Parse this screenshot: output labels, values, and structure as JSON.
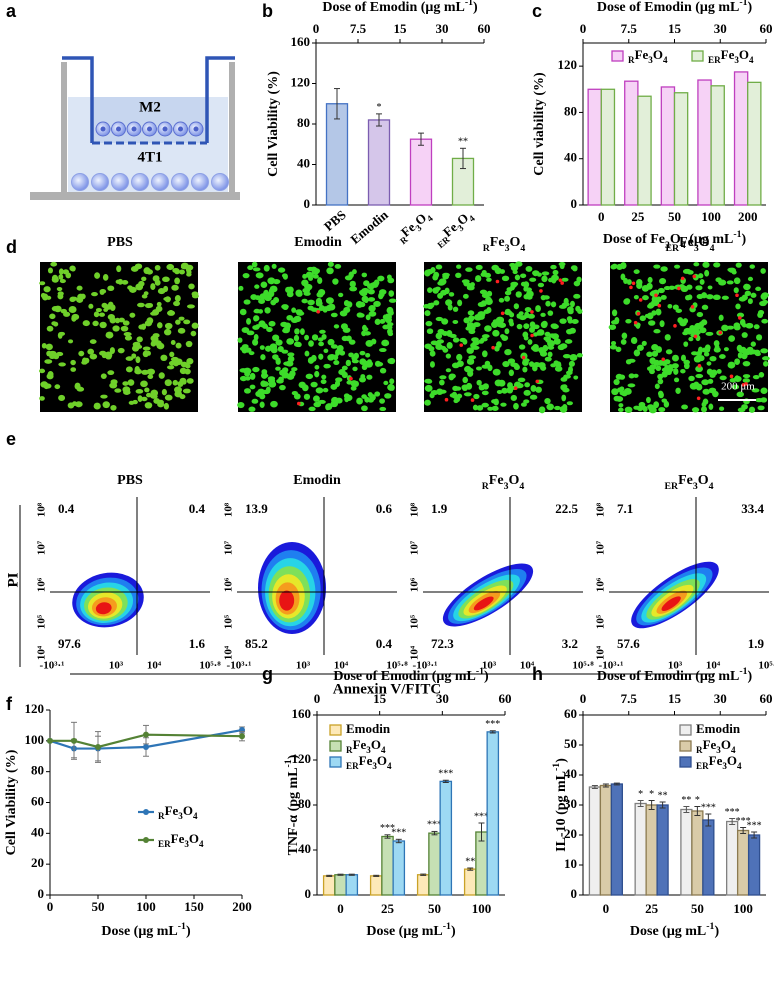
{
  "panel_labels": [
    "a",
    "b",
    "c",
    "d",
    "e",
    "f",
    "g",
    "h"
  ],
  "schematic": {
    "labels": [
      "M2",
      "4T1"
    ]
  },
  "images": {
    "titles": [
      "PBS",
      "Emodin",
      "RFe3O4",
      "ERFe3O4"
    ],
    "scale_bar": "200 μm"
  },
  "flow": {
    "titles": [
      "PBS",
      "Emodin",
      "RFe3O4",
      "ERFe3O4"
    ],
    "quadrants": [
      [
        0.4,
        0.4,
        97.6,
        1.6
      ],
      [
        13.9,
        0.6,
        85.2,
        0.4
      ],
      [
        1.9,
        22.5,
        72.3,
        3.2
      ],
      [
        7.1,
        33.4,
        57.6,
        1.9
      ]
    ],
    "y_ticks": [
      "10⁸",
      "10⁷",
      "10⁶",
      "10⁵",
      "10⁴"
    ],
    "x_ticks": [
      "-10³·¹",
      "10³",
      "10⁴",
      "10⁵·⁸"
    ],
    "y_label": "PI",
    "x_label": "Annexin V/FITC"
  },
  "chart_data": [
    {
      "type": "bar",
      "top_axis": {
        "title": "Dose of Emodin (μg mL-1)",
        "ticks": [
          0,
          7.5,
          15,
          30,
          60
        ]
      },
      "categories": [
        "PBS",
        "Emodin",
        "RFe3O4",
        "ERFe3O4"
      ],
      "values": [
        100,
        84,
        65,
        46
      ],
      "errors": [
        15,
        6,
        6,
        10
      ],
      "annotations": [
        null,
        "*",
        null,
        "**"
      ],
      "colors": [
        "#b4c7e7",
        "#d5c6ea",
        "#f6d2f6",
        "#e2efd9"
      ],
      "edge_colors": [
        "#4472c4",
        "#7b5db0",
        "#bf3fbf",
        "#70ad47"
      ],
      "y_label": "Cell Viability (%)",
      "ylim": [
        0,
        160
      ],
      "yticks": [
        0,
        40,
        80,
        120,
        160
      ]
    },
    {
      "type": "bar",
      "top_axis": {
        "title": "Dose of Emodin (μg mL-1)",
        "ticks": [
          0,
          7.5,
          15,
          30,
          60
        ]
      },
      "categories": [
        "0",
        "25",
        "50",
        "100",
        "200"
      ],
      "series": [
        {
          "name": "RFe3O4",
          "color": "#f6d2f6",
          "edge_color": "#bf3fbf",
          "values": [
            100,
            107,
            102,
            108,
            115
          ]
        },
        {
          "name": "ERFe3O4",
          "color": "#e2efd9",
          "edge_color": "#70ad47",
          "values": [
            100,
            94,
            97,
            103,
            106
          ]
        }
      ],
      "x_label": "Dose of Fe3O4 (μg mL-1)",
      "y_label": "Cell viability (%)",
      "ylim": [
        0,
        140
      ],
      "yticks": [
        0,
        40,
        80,
        120
      ],
      "legend": "top"
    },
    {
      "type": "line",
      "x": [
        0,
        25,
        50,
        100,
        200
      ],
      "series": [
        {
          "name": "RFe3O4",
          "color": "#2e75b6",
          "values": [
            100,
            95,
            95,
            96,
            107
          ],
          "errors": [
            0,
            6,
            8,
            6,
            2
          ]
        },
        {
          "name": "ERFe3O4",
          "color": "#548235",
          "values": [
            100,
            100,
            96,
            104,
            103
          ],
          "errors": [
            0,
            12,
            10,
            6,
            3
          ]
        }
      ],
      "xlim": [
        0,
        200
      ],
      "xticks": [
        0,
        50,
        100,
        150,
        200
      ],
      "ylim": [
        0,
        120
      ],
      "yticks": [
        0,
        20,
        40,
        60,
        80,
        100,
        120
      ],
      "x_label": "Dose (μg mL-1)",
      "y_label": "Cell Viability (%)",
      "legend": "right"
    },
    {
      "type": "bar",
      "top_axis": {
        "title": "Dose of Emodin (μg mL-1)",
        "ticks": [
          0,
          15,
          30,
          60
        ]
      },
      "categories": [
        "0",
        "25",
        "50",
        "100"
      ],
      "series": [
        {
          "name": "Emodin",
          "color": "#fde9b8",
          "edge_color": "#c9a227",
          "values": [
            17,
            17,
            18,
            23
          ],
          "errors": [
            0.5,
            0.5,
            0.6,
            1
          ],
          "annotations": [
            null,
            null,
            null,
            "**"
          ]
        },
        {
          "name": "RFe3O4",
          "color": "#c6e0b4",
          "edge_color": "#548235",
          "values": [
            18,
            52,
            55,
            56
          ],
          "errors": [
            0.5,
            1.5,
            1.5,
            8
          ],
          "annotations": [
            null,
            "***",
            "***",
            "***"
          ]
        },
        {
          "name": "ERFe3O4",
          "color": "#9dd9f3",
          "edge_color": "#2e75b6",
          "values": [
            18,
            48,
            101,
            145
          ],
          "errors": [
            0.5,
            1.5,
            1,
            1
          ],
          "annotations": [
            null,
            "***",
            "***",
            "***"
          ]
        }
      ],
      "x_label": "Dose (μg mL-1)",
      "y_label": "TNF-α (pg mL-1)",
      "ylim": [
        0,
        160
      ],
      "yticks": [
        0,
        40,
        80,
        120,
        160
      ],
      "legend": "top-left"
    },
    {
      "type": "bar",
      "top_axis": {
        "title": "Dose of Emodin (μg mL-1)",
        "ticks": [
          0,
          7.5,
          15,
          30,
          60
        ]
      },
      "categories": [
        "0",
        "25",
        "50",
        "100"
      ],
      "series": [
        {
          "name": "Emodin",
          "color": "#efefef",
          "edge_color": "#808080",
          "values": [
            36,
            30.5,
            28.5,
            24.5
          ],
          "errors": [
            0.5,
            1,
            1,
            1
          ],
          "annotations": [
            null,
            "*",
            "**",
            "***"
          ]
        },
        {
          "name": "RFe3O4",
          "color": "#d9cba8",
          "edge_color": "#8b7a50",
          "values": [
            36.5,
            30,
            28,
            21.5
          ],
          "errors": [
            0.5,
            1.5,
            1.5,
            1
          ],
          "annotations": [
            null,
            "*",
            "*",
            "***"
          ]
        },
        {
          "name": "ERFe3O4",
          "color": "#4f72b8",
          "edge_color": "#2f4f8f",
          "values": [
            37,
            30,
            25,
            20
          ],
          "errors": [
            0.3,
            1,
            2,
            1
          ],
          "annotations": [
            null,
            "**",
            "***",
            "***"
          ]
        }
      ],
      "x_label": "Dose (μg mL-1)",
      "y_label": "IL-10 (pg mL-1)",
      "ylim": [
        0,
        60
      ],
      "yticks": [
        0,
        10,
        20,
        30,
        40,
        50,
        60
      ],
      "legend": "top-right"
    }
  ]
}
